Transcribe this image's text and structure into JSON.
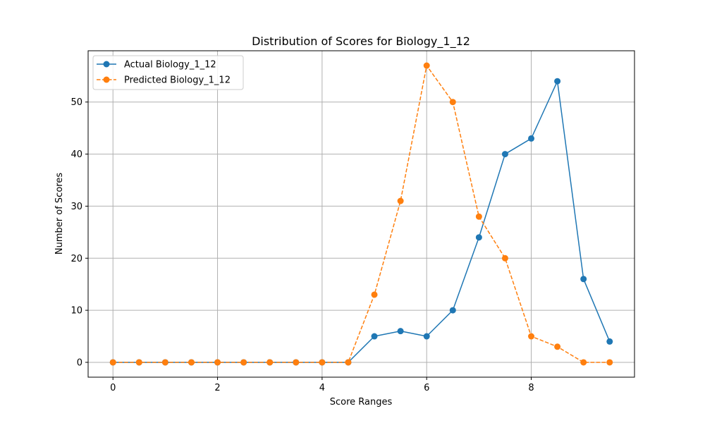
{
  "chart_data": {
    "type": "line",
    "title": "Distribution of Scores for Biology_1_12",
    "xlabel": "Score Ranges",
    "ylabel": "Number of Scores",
    "x": [
      0,
      0.5,
      1,
      1.5,
      2,
      2.5,
      3,
      3.5,
      4,
      4.5,
      5,
      5.5,
      6,
      6.5,
      7,
      7.5,
      8,
      8.5,
      9,
      9.5
    ],
    "xlim": [
      -0.475,
      9.975
    ],
    "ylim": [
      -2.85,
      59.85
    ],
    "xticks": [
      0,
      2,
      4,
      6,
      8
    ],
    "yticks": [
      0,
      10,
      20,
      30,
      40,
      50
    ],
    "grid": true,
    "legend_position": "top-left",
    "series": [
      {
        "name": "Actual Biology_1_12",
        "color": "#1f77b4",
        "linestyle": "solid",
        "marker": "circle",
        "values": [
          0,
          0,
          0,
          0,
          0,
          0,
          0,
          0,
          0,
          0,
          5,
          6,
          5,
          10,
          24,
          40,
          43,
          54,
          16,
          4
        ]
      },
      {
        "name": "Predicted Biology_1_12",
        "color": "#ff7f0e",
        "linestyle": "dashed",
        "marker": "circle",
        "values": [
          0,
          0,
          0,
          0,
          0,
          0,
          0,
          0,
          0,
          0,
          13,
          31,
          57,
          50,
          28,
          20,
          5,
          3,
          0,
          0
        ]
      }
    ]
  }
}
